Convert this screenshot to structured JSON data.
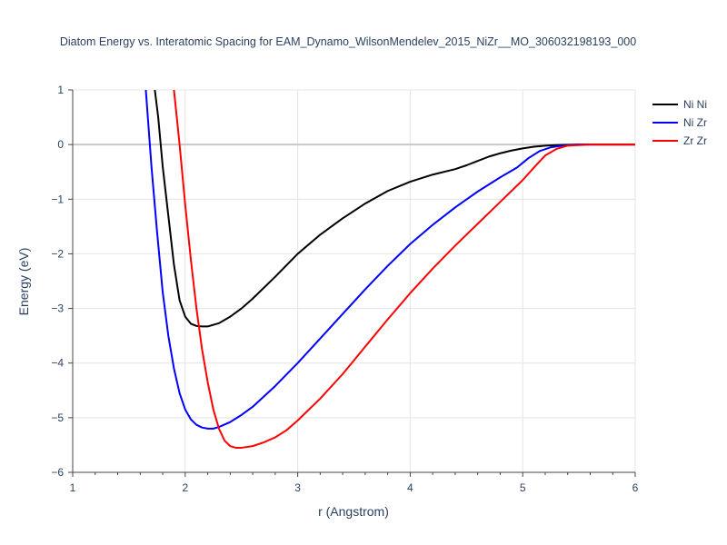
{
  "chart_data": {
    "type": "line",
    "title": "Diatom Energy vs. Interatomic Spacing for EAM_Dynamo_WilsonMendelev_2015_NiZr__MO_306032198193_000",
    "xlabel": "r (Angstrom)",
    "ylabel": "Energy (eV)",
    "xlim": [
      1,
      6
    ],
    "ylim": [
      -6,
      1
    ],
    "xticks": [
      1,
      2,
      3,
      4,
      5,
      6
    ],
    "xtick_labels": [
      "1",
      "2",
      "3",
      "4",
      "5",
      "6"
    ],
    "yticks": [
      1,
      0,
      -1,
      -2,
      -3,
      -4,
      -5,
      -6
    ],
    "ytick_labels": [
      "1",
      "0",
      "−1",
      "−2",
      "−3",
      "−4",
      "−5",
      "−6"
    ],
    "grid": true,
    "legend_position": "top-right",
    "series": [
      {
        "name": "Ni Ni",
        "color": "#000000",
        "x": [
          1.73,
          1.76,
          1.8,
          1.85,
          1.9,
          1.95,
          2.0,
          2.05,
          2.1,
          2.15,
          2.2,
          2.3,
          2.4,
          2.5,
          2.6,
          2.8,
          3.0,
          3.2,
          3.4,
          3.6,
          3.8,
          4.0,
          4.2,
          4.4,
          4.5,
          4.6,
          4.7,
          4.8,
          4.9,
          5.0,
          5.1,
          5.2,
          5.3,
          5.5,
          6.0
        ],
        "y": [
          1.0,
          0.5,
          -0.4,
          -1.3,
          -2.2,
          -2.85,
          -3.15,
          -3.28,
          -3.32,
          -3.33,
          -3.33,
          -3.27,
          -3.15,
          -3.0,
          -2.82,
          -2.42,
          -2.0,
          -1.65,
          -1.35,
          -1.08,
          -0.85,
          -0.68,
          -0.55,
          -0.45,
          -0.38,
          -0.3,
          -0.22,
          -0.16,
          -0.11,
          -0.07,
          -0.04,
          -0.02,
          -0.01,
          0.0,
          0.0
        ]
      },
      {
        "name": "Ni Zr",
        "color": "#0000ff",
        "x": [
          1.65,
          1.7,
          1.75,
          1.8,
          1.85,
          1.9,
          1.95,
          2.0,
          2.05,
          2.1,
          2.15,
          2.2,
          2.25,
          2.3,
          2.4,
          2.5,
          2.6,
          2.8,
          3.0,
          3.2,
          3.4,
          3.6,
          3.8,
          4.0,
          4.2,
          4.4,
          4.6,
          4.8,
          4.95,
          5.05,
          5.15,
          5.25,
          5.35,
          5.5,
          6.0
        ],
        "y": [
          1.0,
          -0.4,
          -1.6,
          -2.7,
          -3.5,
          -4.1,
          -4.55,
          -4.85,
          -5.03,
          -5.13,
          -5.18,
          -5.2,
          -5.2,
          -5.17,
          -5.08,
          -4.95,
          -4.8,
          -4.42,
          -4.0,
          -3.55,
          -3.1,
          -2.65,
          -2.22,
          -1.82,
          -1.47,
          -1.15,
          -0.86,
          -0.6,
          -0.42,
          -0.25,
          -0.12,
          -0.05,
          -0.02,
          0.0,
          0.0
        ]
      },
      {
        "name": "Zr Zr",
        "color": "#ff0000",
        "x": [
          1.9,
          1.95,
          2.0,
          2.05,
          2.1,
          2.15,
          2.2,
          2.25,
          2.3,
          2.35,
          2.4,
          2.45,
          2.5,
          2.6,
          2.7,
          2.8,
          2.9,
          3.0,
          3.2,
          3.4,
          3.6,
          3.8,
          4.0,
          4.2,
          4.4,
          4.6,
          4.8,
          5.0,
          5.1,
          5.2,
          5.3,
          5.4,
          5.6,
          6.0
        ],
        "y": [
          1.0,
          0.0,
          -1.1,
          -2.1,
          -3.0,
          -3.75,
          -4.35,
          -4.85,
          -5.2,
          -5.42,
          -5.52,
          -5.55,
          -5.55,
          -5.52,
          -5.45,
          -5.36,
          -5.23,
          -5.05,
          -4.65,
          -4.2,
          -3.7,
          -3.2,
          -2.72,
          -2.27,
          -1.85,
          -1.45,
          -1.05,
          -0.65,
          -0.42,
          -0.2,
          -0.08,
          -0.02,
          0.0,
          0.0
        ]
      }
    ]
  }
}
